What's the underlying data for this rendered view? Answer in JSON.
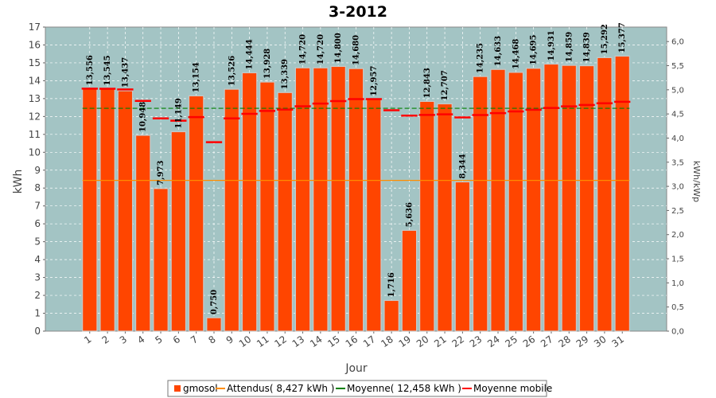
{
  "chart_data": {
    "type": "bar",
    "title": "3-2012",
    "xlabel": "Jour",
    "ylabel": "kWh",
    "y2label": "kWh/kWp",
    "ylim": [
      0,
      17
    ],
    "y2lim": [
      0,
      6.3
    ],
    "grid": true,
    "legend_position": "bottom",
    "categories": [
      "1",
      "2",
      "3",
      "4",
      "5",
      "6",
      "7",
      "8",
      "9",
      "10",
      "11",
      "12",
      "13",
      "14",
      "15",
      "16",
      "17",
      "18",
      "19",
      "20",
      "21",
      "22",
      "23",
      "24",
      "25",
      "26",
      "27",
      "28",
      "29",
      "30",
      "31"
    ],
    "y_ticks": [
      "0",
      "1",
      "2",
      "3",
      "4",
      "5",
      "6",
      "7",
      "8",
      "9",
      "10",
      "11",
      "12",
      "13",
      "14",
      "15",
      "16",
      "17"
    ],
    "y2_ticks": [
      "0,0",
      "0,5",
      "1,0",
      "1,5",
      "2,0",
      "2,5",
      "3,0",
      "3,5",
      "4,0",
      "4,5",
      "5,0",
      "5,5",
      "6,0"
    ],
    "series": [
      {
        "name": "gmosol",
        "type": "bar",
        "color": "#ff4500",
        "values": [
          13.556,
          13.545,
          13.437,
          10.948,
          7.973,
          11.149,
          13.154,
          0.75,
          13.526,
          14.444,
          13.928,
          13.339,
          14.72,
          14.72,
          14.8,
          14.68,
          12.957,
          1.716,
          5.636,
          12.843,
          12.707,
          8.344,
          14.235,
          14.633,
          14.468,
          14.695,
          14.931,
          14.859,
          14.839,
          15.292,
          15.377
        ],
        "labels": [
          "13,556",
          "13,545",
          "13,437",
          "10,948",
          "7,973",
          "11,149",
          "13,154",
          "0,750",
          "13,526",
          "14,444",
          "13,928",
          "13,339",
          "14,720",
          "14,720",
          "14,800",
          "14,680",
          "12,957",
          "1,716",
          "5,636",
          "12,843",
          "12,707",
          "8,344",
          "14,235",
          "14,633",
          "14,468",
          "14,695",
          "14,931",
          "14,859",
          "14,839",
          "15,292",
          "15,377"
        ]
      },
      {
        "name": "Attendus( 8,427 kWh )",
        "type": "line",
        "color": "#ff8c00",
        "value": 8.427
      },
      {
        "name": "Moyenne( 12,458 kWh )",
        "type": "line",
        "color": "#008000",
        "value": 12.458
      },
      {
        "name": "Moyenne mobile",
        "type": "marker",
        "color": "#ff0000",
        "values": [
          13.556,
          13.551,
          13.513,
          12.872,
          11.892,
          11.768,
          11.966,
          10.564,
          11.893,
          12.148,
          12.309,
          12.39,
          12.57,
          12.723,
          12.861,
          12.974,
          12.973,
          12.348,
          12.051,
          12.09,
          12.12,
          11.948,
          12.082,
          12.19,
          12.282,
          12.378,
          12.48,
          12.565,
          12.647,
          12.737,
          12.825
        ]
      }
    ]
  },
  "colors": {
    "plot_bg": "#a3c4c4",
    "grid": "#ffffff",
    "bar": "#ff4500",
    "bar_border": "#ffffff"
  }
}
